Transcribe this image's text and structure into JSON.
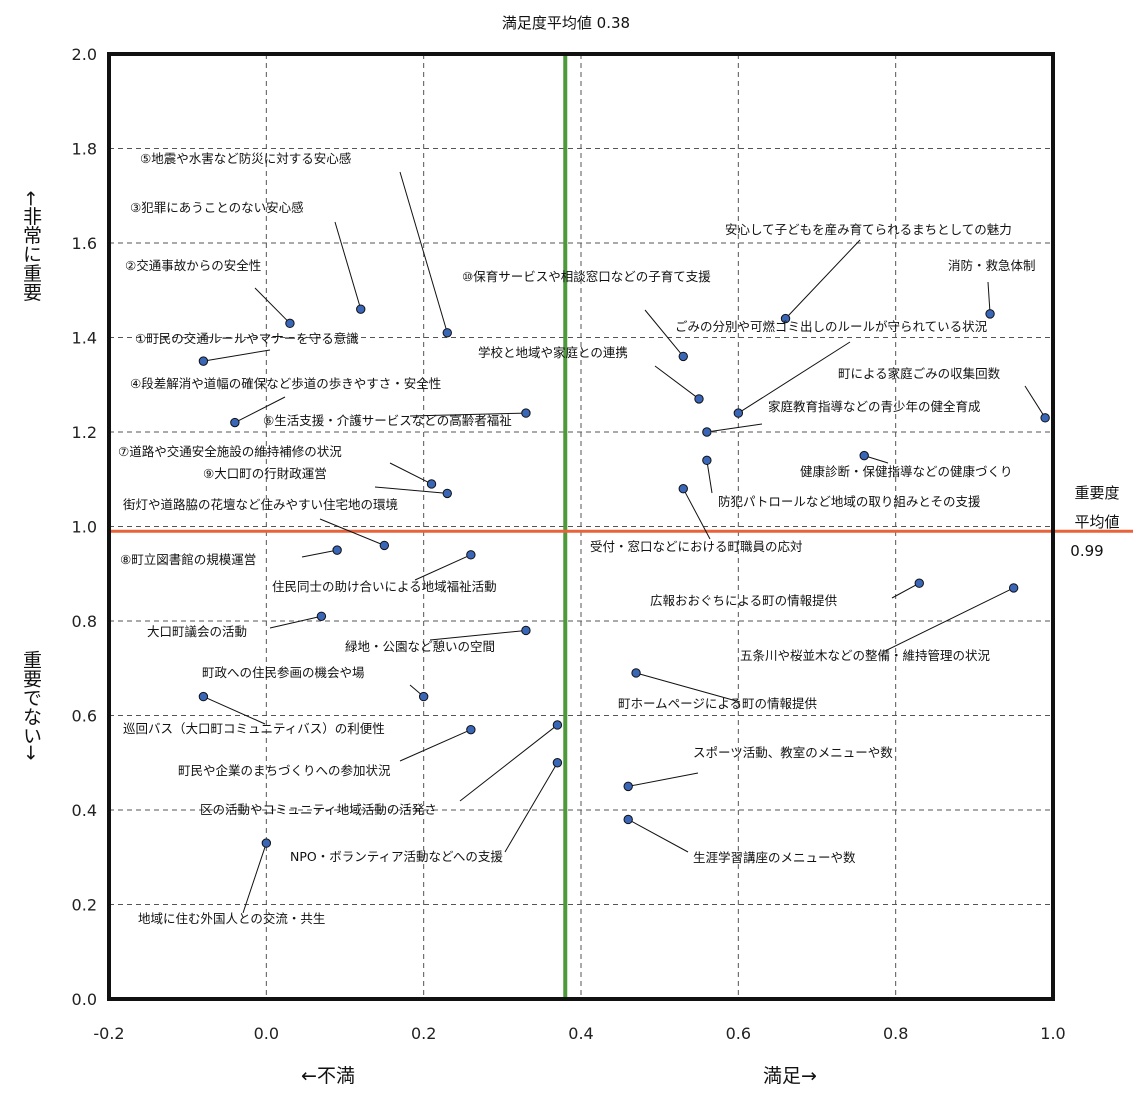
{
  "chart_data": {
    "type": "scatter",
    "xlabel_left": "←不満",
    "xlabel_right": "満足→",
    "ylabel_top": "←非常に重要",
    "ylabel_bottom": "重要でない→",
    "xlim": [
      -0.2,
      1.0
    ],
    "ylim": [
      0.0,
      2.0
    ],
    "x_ticks": [
      "-0.2",
      "0.0",
      "0.2",
      "0.4",
      "0.6",
      "0.8",
      "1.0"
    ],
    "y_ticks": [
      "0.0",
      "0.2",
      "0.4",
      "0.6",
      "0.8",
      "1.0",
      "1.2",
      "1.4",
      "1.6",
      "1.8",
      "2.0"
    ],
    "grid": "dashed",
    "reference_lines": {
      "satisfaction_mean": {
        "value": 0.38,
        "label": "満足度平均値 0.38",
        "color": "#4c9a3a"
      },
      "importance_mean": {
        "value": 0.99,
        "label_line1": "重要度",
        "label_line2": "平均値",
        "label_line3": "0.99",
        "color": "#e8623a"
      }
    },
    "point_color": "#3a66b8",
    "points": [
      {
        "label": "①町民の交通ルールやマナーを守る意識",
        "x": -0.08,
        "y": 1.35
      },
      {
        "label": "②交通事故からの安全性",
        "x": 0.03,
        "y": 1.43
      },
      {
        "label": "③犯罪にあうことのない安心感",
        "x": 0.12,
        "y": 1.46
      },
      {
        "label": "④段差解消や道幅の確保など歩道の歩きやすさ・安全性",
        "x": -0.04,
        "y": 1.22
      },
      {
        "label": "⑤地震や水害など防災に対する安心感",
        "x": 0.23,
        "y": 1.41
      },
      {
        "label": "⑥生活支援・介護サービスなどの高齢者福祉",
        "x": 0.33,
        "y": 1.24
      },
      {
        "label": "⑦道路や交通安全施設の維持補修の状況",
        "x": 0.21,
        "y": 1.09
      },
      {
        "label": "⑨大口町の行財政運営",
        "x": 0.23,
        "y": 1.07
      },
      {
        "label": "街灯や道路脇の花壇など住みやすい住宅地の環境",
        "x": 0.15,
        "y": 0.96
      },
      {
        "label": "⑧町立図書館の規模運営",
        "x": 0.09,
        "y": 0.95
      },
      {
        "label": "住民同士の助け合いによる地域福祉活動",
        "x": 0.26,
        "y": 0.94
      },
      {
        "label": "大口町議会の活動",
        "x": 0.07,
        "y": 0.81
      },
      {
        "label": "緑地・公園など憩いの空間",
        "x": 0.33,
        "y": 0.78
      },
      {
        "label": "町政への住民参画の機会や場",
        "x": 0.2,
        "y": 0.64
      },
      {
        "label": "巡回バス（大口町コミュニティバス）の利便性",
        "x": -0.08,
        "y": 0.64
      },
      {
        "label": "町民や企業のまちづくりへの参加状況",
        "x": 0.26,
        "y": 0.57
      },
      {
        "label": "区の活動やコミュニティ地域活動の活発さ",
        "x": 0.37,
        "y": 0.58
      },
      {
        "label": "NPO・ボランティア活動などへの支援",
        "x": 0.37,
        "y": 0.5
      },
      {
        "label": "地域に住む外国人との交流・共生",
        "x": 0.0,
        "y": 0.33
      },
      {
        "label": "⑩保育サービスや相談窓口などの子育て支援",
        "x": 0.53,
        "y": 1.36
      },
      {
        "label": "安心して子どもを産み育てられるまちとしての魅力",
        "x": 0.66,
        "y": 1.44
      },
      {
        "label": "消防・救急体制",
        "x": 0.92,
        "y": 1.45
      },
      {
        "label": "ごみの分別や可燃ゴミ出しのルールが守られている状況",
        "x": 0.6,
        "y": 1.24
      },
      {
        "label": "学校と地域や家庭との連携",
        "x": 0.55,
        "y": 1.27
      },
      {
        "label": "町による家庭ごみの収集回数",
        "x": 0.99,
        "y": 1.23
      },
      {
        "label": "家庭教育指導などの青少年の健全育成",
        "x": 0.56,
        "y": 1.2
      },
      {
        "label": "健康診断・保健指導などの健康づくり",
        "x": 0.76,
        "y": 1.15
      },
      {
        "label": "防犯パトロールなど地域の取り組みとその支援",
        "x": 0.56,
        "y": 1.14
      },
      {
        "label": "受付・窓口などにおける町職員の応対",
        "x": 0.53,
        "y": 1.08
      },
      {
        "label": "広報おおぐちによる町の情報提供",
        "x": 0.83,
        "y": 0.88
      },
      {
        "label": "五条川や桜並木などの整備・維持管理の状況",
        "x": 0.95,
        "y": 0.87
      },
      {
        "label": "町ホームページによる町の情報提供",
        "x": 0.47,
        "y": 0.69
      },
      {
        "label": "スポーツ活動、教室のメニューや数",
        "x": 0.46,
        "y": 0.45
      },
      {
        "label": "生涯学習講座のメニューや数",
        "x": 0.46,
        "y": 0.38
      }
    ]
  }
}
